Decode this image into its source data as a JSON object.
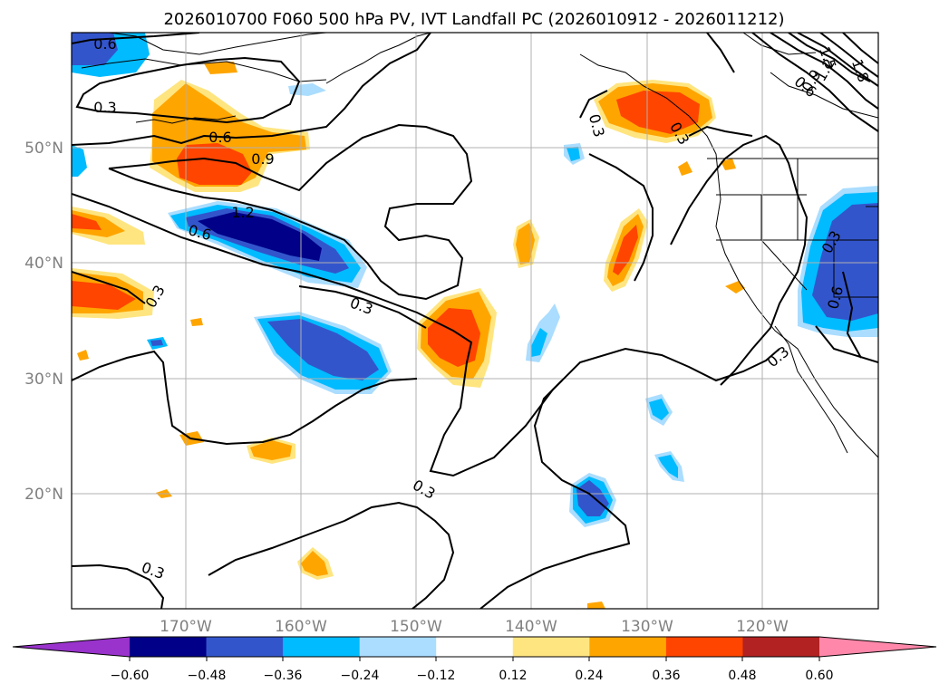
{
  "title": "2026010700 F060 500 hPa PV, IVT Landfall PC (2026010912 - 2026011212)",
  "lat_labels": [
    "50°N",
    "40°N",
    "30°N",
    "20°N"
  ],
  "lon_labels": [
    "170°W",
    "160°W",
    "150°W",
    "140°W",
    "130°W",
    "120°W"
  ],
  "contour_labels": [
    "0.6",
    "0.3",
    "0.6",
    "0.9",
    "1.2",
    "0.6",
    "0.3",
    "0.3",
    "0.3",
    "0.3",
    "0.3",
    "0.6",
    "0.6",
    "0.9",
    "1.2",
    "1.5",
    "1.8",
    "0.3",
    "0.3",
    "0.3"
  ],
  "colorbar": {
    "ticks": [
      "−0.60",
      "−0.48",
      "−0.36",
      "−0.24",
      "−0.12",
      "0.12",
      "0.24",
      "0.36",
      "0.48",
      "0.60"
    ],
    "under_color": "#9933cc",
    "over_color": "#ff88aa",
    "colors": [
      "#000088",
      "#3355cc",
      "#00bbff",
      "#aaddff",
      "#ffffff",
      "#ffe580",
      "#ffa500",
      "#ff4500",
      "#b22222"
    ]
  },
  "fill_colors": {
    "neg4": "#000088",
    "neg3": "#3355cc",
    "neg2": "#00bbff",
    "neg1": "#aaddff",
    "pos1": "#ffe580",
    "pos2": "#ffa500",
    "pos3": "#ff4500"
  }
}
